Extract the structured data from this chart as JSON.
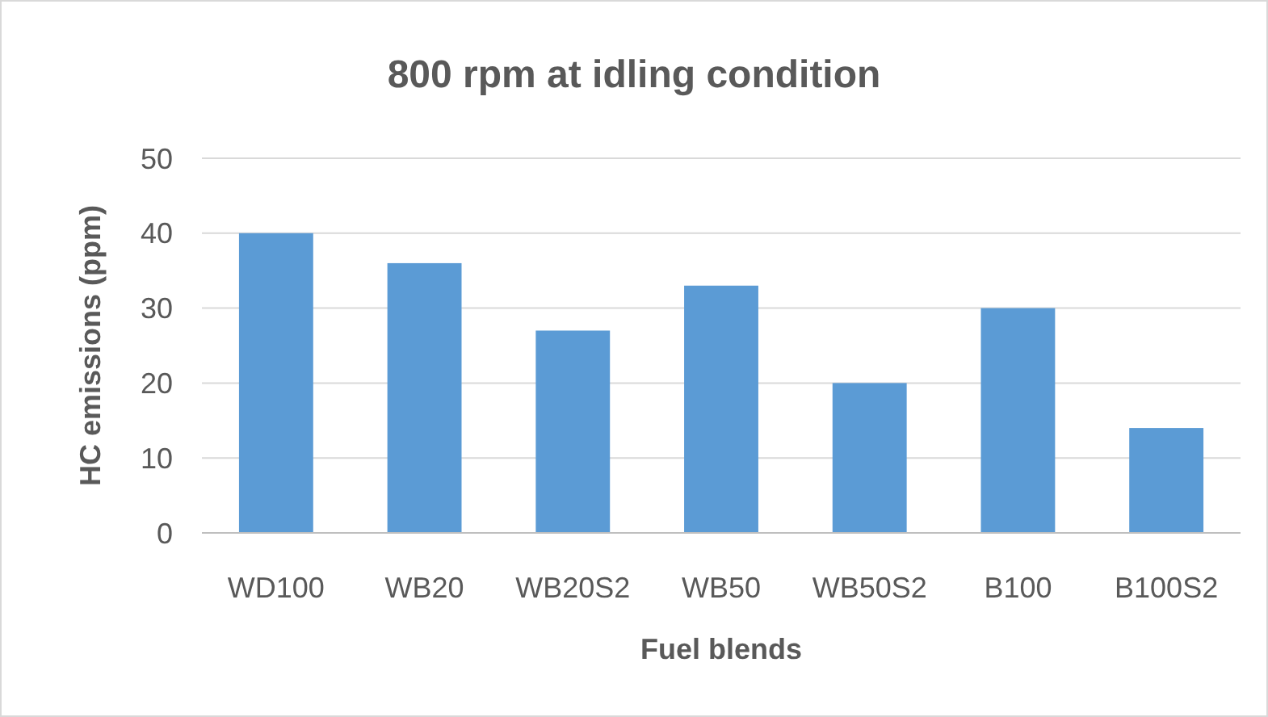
{
  "chart_data": {
    "type": "bar",
    "title": "800 rpm at idling condition",
    "xlabel": "Fuel blends",
    "ylabel": "HC emissions (ppm)",
    "categories": [
      "WD100",
      "WB20",
      "WB20S2",
      "WB50",
      "WB50S2",
      "B100",
      "B100S2"
    ],
    "values": [
      40,
      36,
      27,
      33,
      20,
      30,
      14
    ],
    "color": "#5b9bd5",
    "ylim": [
      0,
      50
    ],
    "yticks": [
      0,
      10,
      20,
      30,
      40,
      50
    ],
    "grid": "y"
  }
}
